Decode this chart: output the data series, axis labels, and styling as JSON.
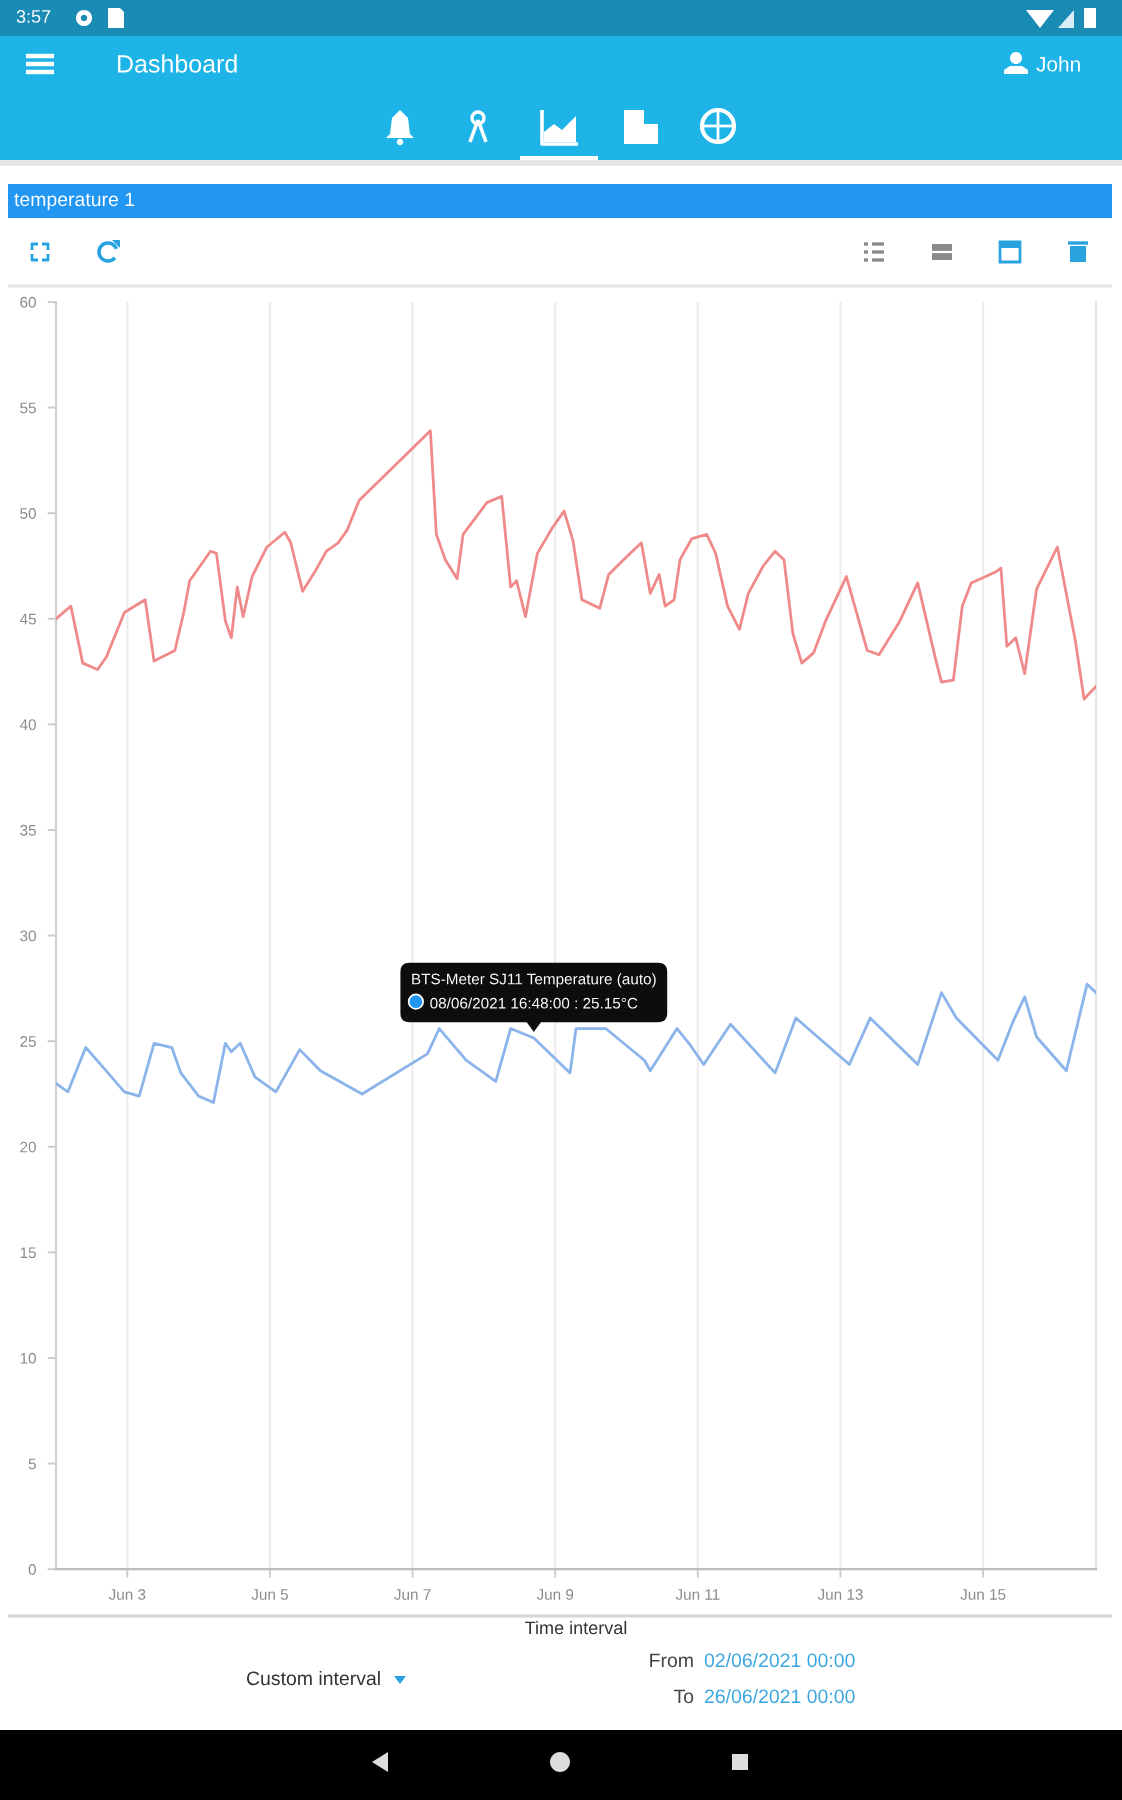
{
  "chart_data": {
    "type": "line",
    "title": "temperature 1",
    "xlabel": "Time interval",
    "xlim": [
      "2021-06-02T00:00",
      "2021-06-16T14:00"
    ],
    "xticks": [
      {
        "value": "2021-06-03",
        "label": "Jun 3"
      },
      {
        "value": "2021-06-05",
        "label": "Jun 5"
      },
      {
        "value": "2021-06-07",
        "label": "Jun 7"
      },
      {
        "value": "2021-06-09",
        "label": "Jun 9"
      },
      {
        "value": "2021-06-11",
        "label": "Jun 11"
      },
      {
        "value": "2021-06-13",
        "label": "Jun 13"
      },
      {
        "value": "2021-06-15",
        "label": "Jun 15"
      }
    ],
    "ylim": [
      0,
      60
    ],
    "yticks": [
      0,
      5,
      10,
      15,
      20,
      25,
      30,
      35,
      40,
      45,
      50,
      55,
      60
    ],
    "grid": "x",
    "line_style": "solid",
    "series": [
      {
        "color": "#f08a8a",
        "x": [
          "2021-06-02T00:00",
          "2021-06-02T05:00",
          "2021-06-02T09:00",
          "2021-06-02T14:00",
          "2021-06-02T17:00",
          "2021-06-02T23:00",
          "2021-06-03T06:00",
          "2021-06-03T09:00",
          "2021-06-03T16:00",
          "2021-06-03T19:00",
          "2021-06-03T21:00",
          "2021-06-04T04:00",
          "2021-06-04T06:00",
          "2021-06-04T09:00",
          "2021-06-04T11:00",
          "2021-06-04T13:00",
          "2021-06-04T15:00",
          "2021-06-04T18:00",
          "2021-06-04T23:00",
          "2021-06-05T05:00",
          "2021-06-05T07:00",
          "2021-06-05T11:00",
          "2021-06-05T15:00",
          "2021-06-05T19:00",
          "2021-06-05T23:00",
          "2021-06-06T02:00",
          "2021-06-06T06:00",
          "2021-06-07T06:00",
          "2021-06-07T08:00",
          "2021-06-07T11:00",
          "2021-06-07T15:00",
          "2021-06-07T17:00",
          "2021-06-08T01:00",
          "2021-06-08T06:00",
          "2021-06-08T09:00",
          "2021-06-08T11:00",
          "2021-06-08T14:00",
          "2021-06-08T18:00",
          "2021-06-08T23:00",
          "2021-06-09T03:00",
          "2021-06-09T06:00",
          "2021-06-09T09:00",
          "2021-06-09T15:00",
          "2021-06-09T18:00",
          "2021-06-09T23:00",
          "2021-06-10T05:00",
          "2021-06-10T08:00",
          "2021-06-10T11:00",
          "2021-06-10T13:00",
          "2021-06-10T16:00",
          "2021-06-10T18:00",
          "2021-06-10T22:00",
          "2021-06-11T03:00",
          "2021-06-11T06:00",
          "2021-06-11T10:00",
          "2021-06-11T14:00",
          "2021-06-11T17:00",
          "2021-06-11T22:00",
          "2021-06-12T02:00",
          "2021-06-12T05:00",
          "2021-06-12T08:00",
          "2021-06-12T11:00",
          "2021-06-12T15:00",
          "2021-06-12T19:00",
          "2021-06-13T02:00",
          "2021-06-13T09:00",
          "2021-06-13T13:00",
          "2021-06-13T20:00",
          "2021-06-14T02:00",
          "2021-06-14T08:00",
          "2021-06-14T10:00",
          "2021-06-14T14:00",
          "2021-06-14T17:00",
          "2021-06-14T20:00",
          "2021-06-15T04:00",
          "2021-06-15T06:00",
          "2021-06-15T08:00",
          "2021-06-15T11:00",
          "2021-06-15T14:00",
          "2021-06-15T18:00",
          "2021-06-16T01:00",
          "2021-06-16T07:00",
          "2021-06-16T10:00",
          "2021-06-16T14:00"
        ],
        "values": [
          45.0,
          45.6,
          42.9,
          42.6,
          43.2,
          45.3,
          45.9,
          43.0,
          43.5,
          45.3,
          46.8,
          48.2,
          48.1,
          44.9,
          44.1,
          46.5,
          45.1,
          47.0,
          48.4,
          49.1,
          48.6,
          46.3,
          47.2,
          48.2,
          48.6,
          49.2,
          50.6,
          53.9,
          49.0,
          47.8,
          46.9,
          49.0,
          50.5,
          50.8,
          46.5,
          46.8,
          45.1,
          48.1,
          49.3,
          50.1,
          48.7,
          45.9,
          45.5,
          47.1,
          47.8,
          48.6,
          46.2,
          47.1,
          45.6,
          45.9,
          47.8,
          48.8,
          49.0,
          48.1,
          45.6,
          44.5,
          46.2,
          47.5,
          48.2,
          47.8,
          44.3,
          42.9,
          43.4,
          44.9,
          47.0,
          43.5,
          43.3,
          44.9,
          46.7,
          43.1,
          42.0,
          42.1,
          45.6,
          46.7,
          47.2,
          47.4,
          43.7,
          44.1,
          42.4,
          46.4,
          48.4,
          44.0,
          41.2,
          41.8
        ]
      },
      {
        "color": "#8ab4ea",
        "x": [
          "2021-06-02T00:00",
          "2021-06-02T04:00",
          "2021-06-02T10:00",
          "2021-06-02T15:00",
          "2021-06-02T23:00",
          "2021-06-03T04:00",
          "2021-06-03T09:00",
          "2021-06-03T15:00",
          "2021-06-03T18:00",
          "2021-06-04T00:00",
          "2021-06-04T05:00",
          "2021-06-04T09:00",
          "2021-06-04T11:00",
          "2021-06-04T14:00",
          "2021-06-04T19:00",
          "2021-06-05T02:00",
          "2021-06-05T10:00",
          "2021-06-05T17:00",
          "2021-06-06T07:00",
          "2021-06-07T05:00",
          "2021-06-07T09:00",
          "2021-06-07T18:00",
          "2021-06-08T04:00",
          "2021-06-08T09:00",
          "2021-06-08T16:48",
          "2021-06-09T05:00",
          "2021-06-09T07:00",
          "2021-06-09T17:00",
          "2021-06-10T06:00",
          "2021-06-10T08:00",
          "2021-06-10T17:00",
          "2021-06-10T21:00",
          "2021-06-11T02:00",
          "2021-06-11T11:00",
          "2021-06-12T02:00",
          "2021-06-12T09:00",
          "2021-06-13T03:00",
          "2021-06-13T10:00",
          "2021-06-14T02:00",
          "2021-06-14T10:00",
          "2021-06-14T15:00",
          "2021-06-15T05:00",
          "2021-06-15T10:00",
          "2021-06-15T14:00",
          "2021-06-15T18:00",
          "2021-06-16T04:00",
          "2021-06-16T11:00",
          "2021-06-16T14:00"
        ],
        "values": [
          23.0,
          22.6,
          24.7,
          23.9,
          22.6,
          22.4,
          24.9,
          24.7,
          23.5,
          22.4,
          22.1,
          24.9,
          24.5,
          24.9,
          23.3,
          22.6,
          24.6,
          23.6,
          22.5,
          24.4,
          25.6,
          24.1,
          23.1,
          25.6,
          25.15,
          23.5,
          25.6,
          25.6,
          24.1,
          23.6,
          25.6,
          24.9,
          23.9,
          25.8,
          23.5,
          26.1,
          23.9,
          26.1,
          23.9,
          27.3,
          26.1,
          24.1,
          25.9,
          27.1,
          25.2,
          23.6,
          27.7,
          27.3
        ]
      }
    ],
    "annotations": [
      {
        "text": "BTS-Meter SJ11 Temperature (auto)\n08/06/2021 16:48:00 : 25.15°C",
        "x": "2021-06-08T16:48",
        "y": 25.15
      },
      "3:57",
      "Dashboard",
      "John",
      "Custom interval",
      "From",
      "02/06/2021 00:00",
      "To",
      "26/06/2021 00:00"
    ]
  }
}
